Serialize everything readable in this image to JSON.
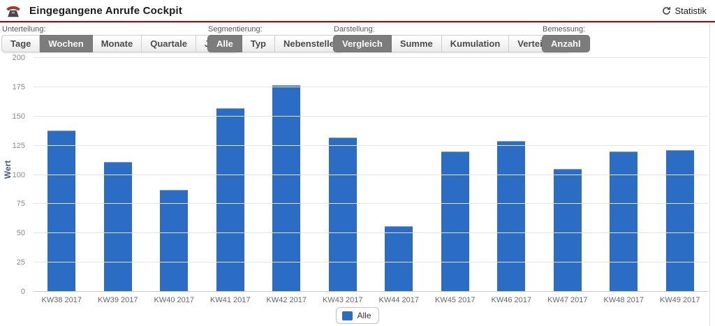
{
  "header": {
    "title": "Eingegangene Anrufe Cockpit",
    "statistik_label": "Statistik"
  },
  "icons": {
    "phone": "phone-icon",
    "refresh": "refresh-icon"
  },
  "toolbar": {
    "groups": [
      {
        "label": "Unterteilung:",
        "buttons": [
          {
            "label": "Tage",
            "selected": false
          },
          {
            "label": "Wochen",
            "selected": true
          },
          {
            "label": "Monate",
            "selected": false
          },
          {
            "label": "Quartale",
            "selected": false
          },
          {
            "label": "Jahre",
            "selected": false
          }
        ]
      },
      {
        "label": "Segmentierung:",
        "buttons": [
          {
            "label": "Alle",
            "selected": true
          },
          {
            "label": "Typ",
            "selected": false
          },
          {
            "label": "Nebenstelle",
            "selected": false
          }
        ]
      },
      {
        "label": "Darstellung:",
        "buttons": [
          {
            "label": "Vergleich",
            "selected": true
          },
          {
            "label": "Summe",
            "selected": false
          },
          {
            "label": "Kumulation",
            "selected": false
          },
          {
            "label": "Verteilung",
            "selected": false
          }
        ]
      },
      {
        "label": "Bemessung:",
        "buttons": [
          {
            "label": "Anzahl",
            "selected": true
          }
        ]
      }
    ]
  },
  "chart_data": {
    "type": "bar",
    "title": "",
    "categories": [
      "KW38 2017",
      "KW39 2017",
      "KW40 2017",
      "KW41 2017",
      "KW42 2017",
      "KW43 2017",
      "KW44 2017",
      "KW45 2017",
      "KW46 2017",
      "KW47 2017",
      "KW48 2017",
      "KW49 2017"
    ],
    "series": [
      {
        "name": "Alle",
        "color": "#2b6cc4",
        "values": [
          138,
          111,
          87,
          157,
          177,
          132,
          56,
          120,
          129,
          105,
          120,
          121
        ]
      }
    ],
    "xlabel": "",
    "ylabel": "Wert",
    "ylim": [
      0,
      200
    ],
    "ytick_step": 25,
    "grid": true,
    "legend_position": "bottom"
  },
  "colors": {
    "bar_blue": "#2b6cc4",
    "accent_red": "#7b1b22",
    "selected_button_bg": "#7c7c7c",
    "gridline": "#e4e4e4"
  }
}
